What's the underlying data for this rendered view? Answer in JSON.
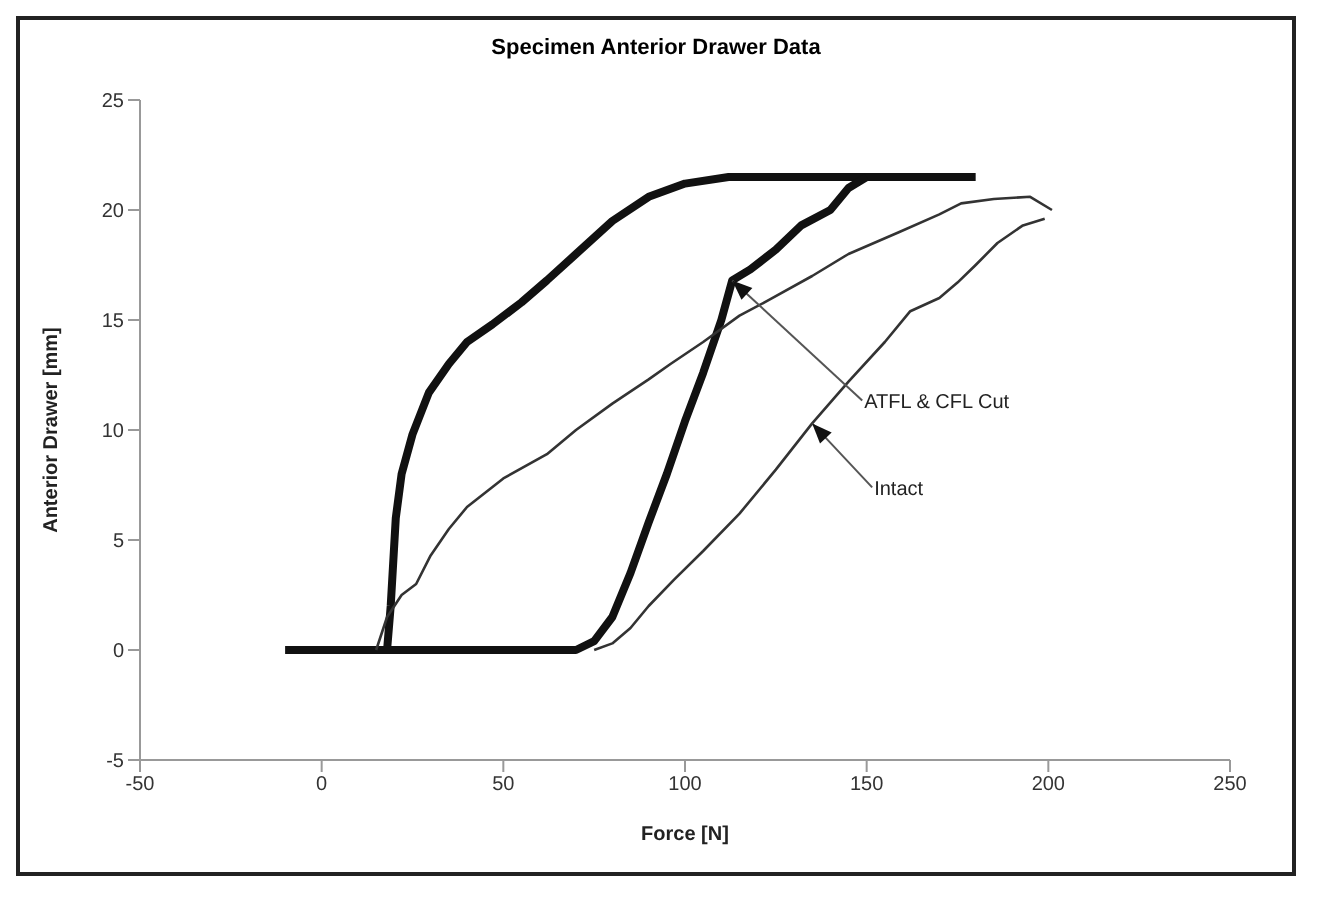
{
  "chart_data": {
    "type": "line",
    "title": "Specimen Anterior Drawer Data",
    "xlabel": "Force [N]",
    "ylabel": "Anterior Drawer [mm]",
    "xlim": [
      -50,
      250
    ],
    "xticks": [
      -50,
      0,
      50,
      100,
      150,
      200,
      250
    ],
    "ylim": [
      -5,
      25
    ],
    "yticks": [
      -5,
      0,
      5,
      10,
      15,
      20,
      25
    ],
    "marker": "none",
    "series": [
      {
        "color": "#111111",
        "x": [
          -10,
          0,
          10,
          18,
          19,
          20.4,
          22,
          25,
          29.5,
          35,
          40,
          47,
          55,
          62,
          70,
          80,
          90,
          100,
          112,
          130,
          150,
          165,
          180
        ],
        "values": [
          0,
          0,
          0,
          0,
          2,
          6,
          8,
          9.8,
          11.7,
          13,
          14,
          14.8,
          15.8,
          16.8,
          18,
          19.5,
          20.6,
          21.2,
          21.5,
          21.5,
          21.5,
          21.5,
          21.5
        ]
      },
      {
        "color": "#111111",
        "x": [
          150,
          145,
          140,
          132,
          125,
          118,
          113,
          110,
          105,
          100,
          95,
          90,
          85,
          80,
          75,
          70,
          50,
          20,
          -10
        ],
        "values": [
          21.5,
          21,
          20,
          19.3,
          18.2,
          17.3,
          16.8,
          15,
          12.6,
          10.4,
          8,
          5.8,
          3.5,
          1.5,
          0.4,
          0,
          0,
          0,
          0
        ]
      },
      {
        "color": "#333333",
        "x": [
          15,
          18,
          22,
          26,
          30,
          35,
          40,
          50,
          62,
          70,
          80,
          90,
          96,
          105,
          115,
          123,
          135,
          145,
          159,
          170,
          176,
          185,
          195,
          201
        ],
        "values": [
          0,
          1.5,
          2.5,
          3,
          4.3,
          5.5,
          6.5,
          7.8,
          8.9,
          10,
          11.2,
          12.3,
          13,
          14,
          15.2,
          15.9,
          17,
          18,
          19,
          19.8,
          20.3,
          20.5,
          20.6,
          20
        ]
      },
      {
        "color": "#333333",
        "x": [
          199,
          193,
          186,
          180,
          175,
          170,
          162,
          155,
          145,
          135,
          125,
          115,
          105,
          97,
          90,
          85,
          80,
          75
        ],
        "values": [
          19.6,
          19.3,
          18.5,
          17.5,
          16.7,
          16,
          15.4,
          14,
          12.2,
          10.3,
          8.2,
          6.2,
          4.5,
          3.2,
          2,
          1,
          0.3,
          0
        ]
      }
    ],
    "annotations": [
      {
        "text": "ATFL & CFL Cut",
        "x": 113,
        "y": 16.8
      },
      {
        "text": "Intact",
        "x": 135,
        "y": 10.3
      }
    ]
  }
}
